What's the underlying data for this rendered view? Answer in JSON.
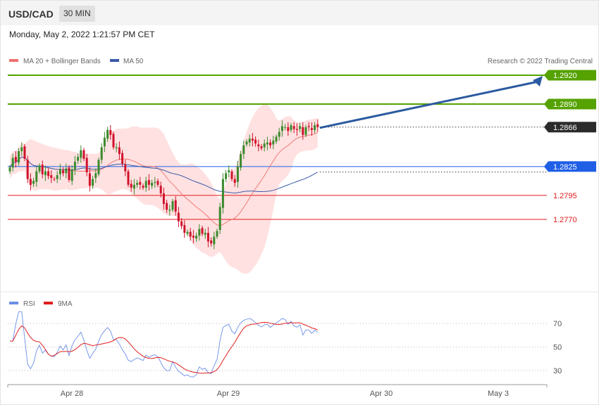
{
  "header": {
    "symbol": "USD/CAD",
    "timeframe": "30 MIN",
    "datetime": "Monday, May 2, 2022 1:21:57 PM CET"
  },
  "legend": {
    "ma20": "MA 20 + Bollinger Bands",
    "ma50": "MA 50",
    "copyright": "Research © 2022 Trading Central"
  },
  "rsi_legend": {
    "rsi": "RSI",
    "ma9": "9MA"
  },
  "colors": {
    "up": "#3a8a2c",
    "down": "#d0112b",
    "bb": "#ffc9c9",
    "ma20": "#f07070",
    "ma50": "#3a5aa8",
    "target": "#55a200",
    "pivot": "#1f5fe6",
    "support": "#e01b1b",
    "arrow": "#2b5aa0",
    "rsi": "#6a8ee8",
    "rsi_ma": "#e02020"
  },
  "chart_data": [
    {
      "type": "candlestick",
      "title": "USD/CAD",
      "timeframe": "30 MIN",
      "x": [
        "Apr 28",
        "Apr 29",
        "Apr 30",
        "May 3"
      ],
      "ylim": [
        1.2712,
        1.2938
      ],
      "last_price": "1.2866",
      "levels": [
        {
          "value": 1.292,
          "label": "1.2920",
          "role": "resistance"
        },
        {
          "value": 1.289,
          "label": "1.2890",
          "role": "resistance"
        },
        {
          "value": 1.2866,
          "label": "1.2866",
          "role": "last"
        },
        {
          "value": 1.2825,
          "label": "1.2825",
          "role": "pivot"
        },
        {
          "value": 1.2795,
          "label": "1.2795",
          "role": "support"
        },
        {
          "value": 1.277,
          "label": "1.2770",
          "role": "support"
        }
      ],
      "series": [
        {
          "name": "MA 20 + Bollinger Bands"
        },
        {
          "name": "MA 50"
        }
      ],
      "closes": [
        1.2824,
        1.2834,
        1.283,
        1.2841,
        1.2845,
        1.2833,
        1.2812,
        1.2806,
        1.281,
        1.282,
        1.2826,
        1.2817,
        1.282,
        1.2815,
        1.2813,
        1.2812,
        1.2816,
        1.2822,
        1.2818,
        1.2823,
        1.2811,
        1.2822,
        1.283,
        1.2835,
        1.2842,
        1.2833,
        1.2819,
        1.2805,
        1.2812,
        1.2818,
        1.2832,
        1.2845,
        1.2855,
        1.2863,
        1.2858,
        1.2845,
        1.2845,
        1.2838,
        1.2828,
        1.282,
        1.2806,
        1.2803,
        1.2806,
        1.2808,
        1.2806,
        1.2803,
        1.281,
        1.2806,
        1.2808,
        1.2809,
        1.2806,
        1.2797,
        1.2786,
        1.278,
        1.278,
        1.2789,
        1.2778,
        1.2768,
        1.2763,
        1.2756,
        1.2757,
        1.2752,
        1.2751,
        1.2753,
        1.276,
        1.2755,
        1.2756,
        1.2747,
        1.2745,
        1.2752,
        1.2758,
        1.2783,
        1.2812,
        1.2818,
        1.2821,
        1.2812,
        1.2808,
        1.2825,
        1.2838,
        1.2847,
        1.2851,
        1.2854,
        1.2852,
        1.2849,
        1.2846,
        1.2844,
        1.2849,
        1.285,
        1.2847,
        1.2852,
        1.2856,
        1.2861,
        1.2867,
        1.2866,
        1.2862,
        1.2868,
        1.2864,
        1.2863,
        1.2867,
        1.2858,
        1.2866,
        1.2866,
        1.2863,
        1.2868,
        1.2866
      ],
      "x_ticks": [
        "Apr 28",
        "Apr 29",
        "Apr 30",
        "May 3"
      ]
    },
    {
      "type": "line",
      "title": "",
      "series": [
        {
          "name": "RSI"
        },
        {
          "name": "9MA"
        }
      ],
      "ylim": [
        20,
        80
      ],
      "y_ticks": [
        "70",
        "50",
        "30"
      ]
    }
  ]
}
